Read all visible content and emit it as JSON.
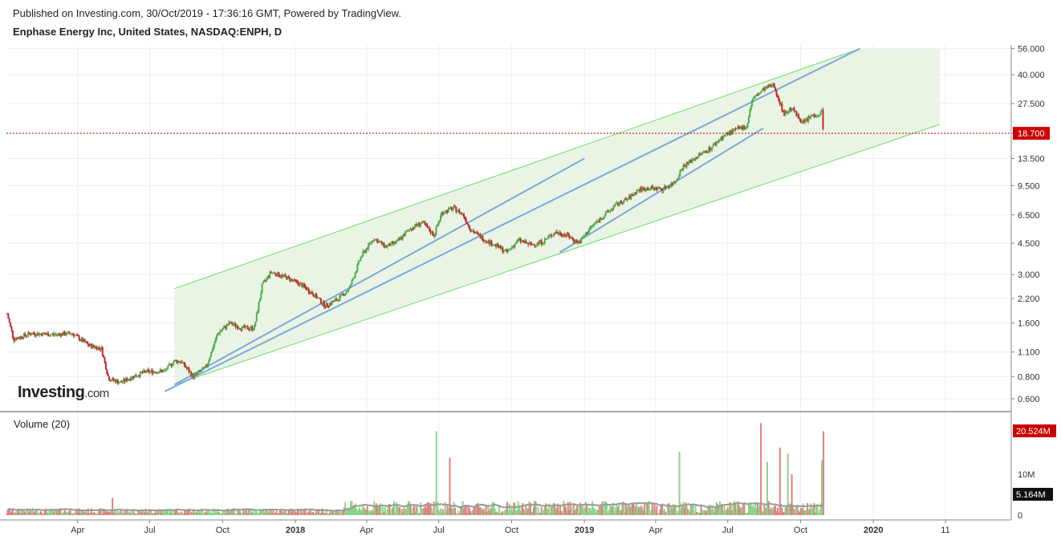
{
  "header": {
    "published": "Published on Investing.com, 30/Oct/2019 - 17:36:16 GMT, Powered by TradingView.",
    "symbol": "Enphase Energy Inc, United States, NASDAQ:ENPH, D"
  },
  "logo": {
    "brand": "Investing",
    "suffix": ".com"
  },
  "volume_panel": {
    "label": "Volume (20)"
  },
  "colors": {
    "up": "#4caf50",
    "down": "#c62828",
    "channel": "#66e066",
    "trend": "#7da7d9",
    "fill": "#e8f3e2",
    "price_line": "#cc0000",
    "ma": "#999999"
  },
  "chart_data": {
    "type": "candlestick",
    "price_scale": "log",
    "price_ticks": [
      "56.000",
      "40.000",
      "27.500",
      "18.700",
      "13.500",
      "9.500",
      "6.500",
      "4.500",
      "3.000",
      "2.200",
      "1.600",
      "1.100",
      "0.800",
      "0.600"
    ],
    "current_price": "18.700",
    "volume_ticks": [
      "10M",
      "0"
    ],
    "volume_last": "20.524M",
    "volume_ma_last": "5.164M",
    "x_labels": [
      "Apr",
      "Jul",
      "Oct",
      "2018",
      "Apr",
      "Jul",
      "Oct",
      "2019",
      "Apr",
      "Jul",
      "Oct",
      "2020",
      "11"
    ],
    "x_label_dates": [
      "2017-04-01",
      "2017-07-01",
      "2017-10-01",
      "2018-01-01",
      "2018-04-01",
      "2018-07-01",
      "2018-10-01",
      "2019-01-01",
      "2019-04-01",
      "2019-07-01",
      "2019-10-01",
      "2020-01-01",
      "2020-04-01"
    ],
    "x_range": [
      "2017-01-01",
      "2020-04-01"
    ],
    "price_path": [
      [
        "2017-01-02",
        1.8
      ],
      [
        "2017-01-10",
        1.3
      ],
      [
        "2017-02-01",
        1.4
      ],
      [
        "2017-03-01",
        1.38
      ],
      [
        "2017-03-25",
        1.4
      ],
      [
        "2017-04-15",
        1.2
      ],
      [
        "2017-05-01",
        1.15
      ],
      [
        "2017-05-10",
        0.78
      ],
      [
        "2017-05-25",
        0.74
      ],
      [
        "2017-06-10",
        0.8
      ],
      [
        "2017-06-25",
        0.85
      ],
      [
        "2017-07-20",
        0.86
      ],
      [
        "2017-08-01",
        0.98
      ],
      [
        "2017-08-10",
        0.97
      ],
      [
        "2017-08-25",
        0.8
      ],
      [
        "2017-09-10",
        0.9
      ],
      [
        "2017-09-25",
        1.4
      ],
      [
        "2017-10-10",
        1.6
      ],
      [
        "2017-10-25",
        1.5
      ],
      [
        "2017-11-10",
        1.5
      ],
      [
        "2017-11-20",
        2.6
      ],
      [
        "2017-12-01",
        3.1
      ],
      [
        "2017-12-20",
        2.9
      ],
      [
        "2018-01-10",
        2.6
      ],
      [
        "2018-01-25",
        2.3
      ],
      [
        "2018-02-08",
        2.0
      ],
      [
        "2018-02-25",
        2.2
      ],
      [
        "2018-03-10",
        2.5
      ],
      [
        "2018-03-25",
        3.8
      ],
      [
        "2018-04-10",
        4.8
      ],
      [
        "2018-04-25",
        4.3
      ],
      [
        "2018-05-10",
        4.6
      ],
      [
        "2018-05-25",
        5.4
      ],
      [
        "2018-06-10",
        5.9
      ],
      [
        "2018-06-25",
        5.0
      ],
      [
        "2018-07-05",
        6.7
      ],
      [
        "2018-07-20",
        7.1
      ],
      [
        "2018-08-01",
        6.5
      ],
      [
        "2018-08-10",
        5.4
      ],
      [
        "2018-08-25",
        4.8
      ],
      [
        "2018-09-10",
        4.4
      ],
      [
        "2018-09-25",
        4.0
      ],
      [
        "2018-10-10",
        4.7
      ],
      [
        "2018-10-25",
        4.4
      ],
      [
        "2018-11-10",
        4.6
      ],
      [
        "2018-11-25",
        5.2
      ],
      [
        "2018-12-10",
        5.0
      ],
      [
        "2018-12-25",
        4.5
      ],
      [
        "2019-01-10",
        5.6
      ],
      [
        "2019-01-25",
        6.4
      ],
      [
        "2019-02-10",
        7.4
      ],
      [
        "2019-02-25",
        8.0
      ],
      [
        "2019-03-10",
        9.0
      ],
      [
        "2019-03-25",
        9.2
      ],
      [
        "2019-04-10",
        9.1
      ],
      [
        "2019-04-25",
        9.9
      ],
      [
        "2019-05-05",
        12.1
      ],
      [
        "2019-05-25",
        14.0
      ],
      [
        "2019-06-10",
        15.5
      ],
      [
        "2019-06-25",
        18.0
      ],
      [
        "2019-07-10",
        19.5
      ],
      [
        "2019-07-25",
        20.5
      ],
      [
        "2019-08-01",
        29.0
      ],
      [
        "2019-08-15",
        33.0
      ],
      [
        "2019-08-28",
        35.0
      ],
      [
        "2019-09-10",
        24.0
      ],
      [
        "2019-09-20",
        26.0
      ],
      [
        "2019-09-28",
        23.0
      ],
      [
        "2019-10-05",
        21.5
      ],
      [
        "2019-10-15",
        23.5
      ],
      [
        "2019-10-25",
        24.0
      ],
      [
        "2019-10-28",
        25.0
      ],
      [
        "2019-10-30",
        18.7
      ]
    ],
    "channel": {
      "upper": [
        [
          "2017-08-01",
          2.5
        ],
        [
          "2019-12-15",
          56.0
        ]
      ],
      "lower": [
        [
          "2017-08-01",
          0.72
        ],
        [
          "2020-03-25",
          21.0
        ]
      ]
    },
    "trend_lines": [
      [
        [
          "2017-07-20",
          0.66
        ],
        [
          "2019-12-15",
          56.0
        ]
      ],
      [
        [
          "2017-08-01",
          0.72
        ],
        [
          "2019-01-01",
          13.5
        ]
      ],
      [
        [
          "2018-12-01",
          4.0
        ],
        [
          "2019-08-15",
          20.0
        ]
      ]
    ],
    "volume_spikes": [
      [
        "2017-05-15",
        4.2
      ],
      [
        "2018-06-28",
        20.5
      ],
      [
        "2018-07-15",
        14.0
      ],
      [
        "2019-05-01",
        15.5
      ],
      [
        "2019-08-12",
        22.5
      ],
      [
        "2019-08-20",
        13.0
      ],
      [
        "2019-09-05",
        16.5
      ],
      [
        "2019-09-15",
        15.0
      ],
      [
        "2019-09-20",
        10.0
      ],
      [
        "2019-10-28",
        13.5
      ],
      [
        "2019-10-30",
        20.524
      ]
    ]
  }
}
